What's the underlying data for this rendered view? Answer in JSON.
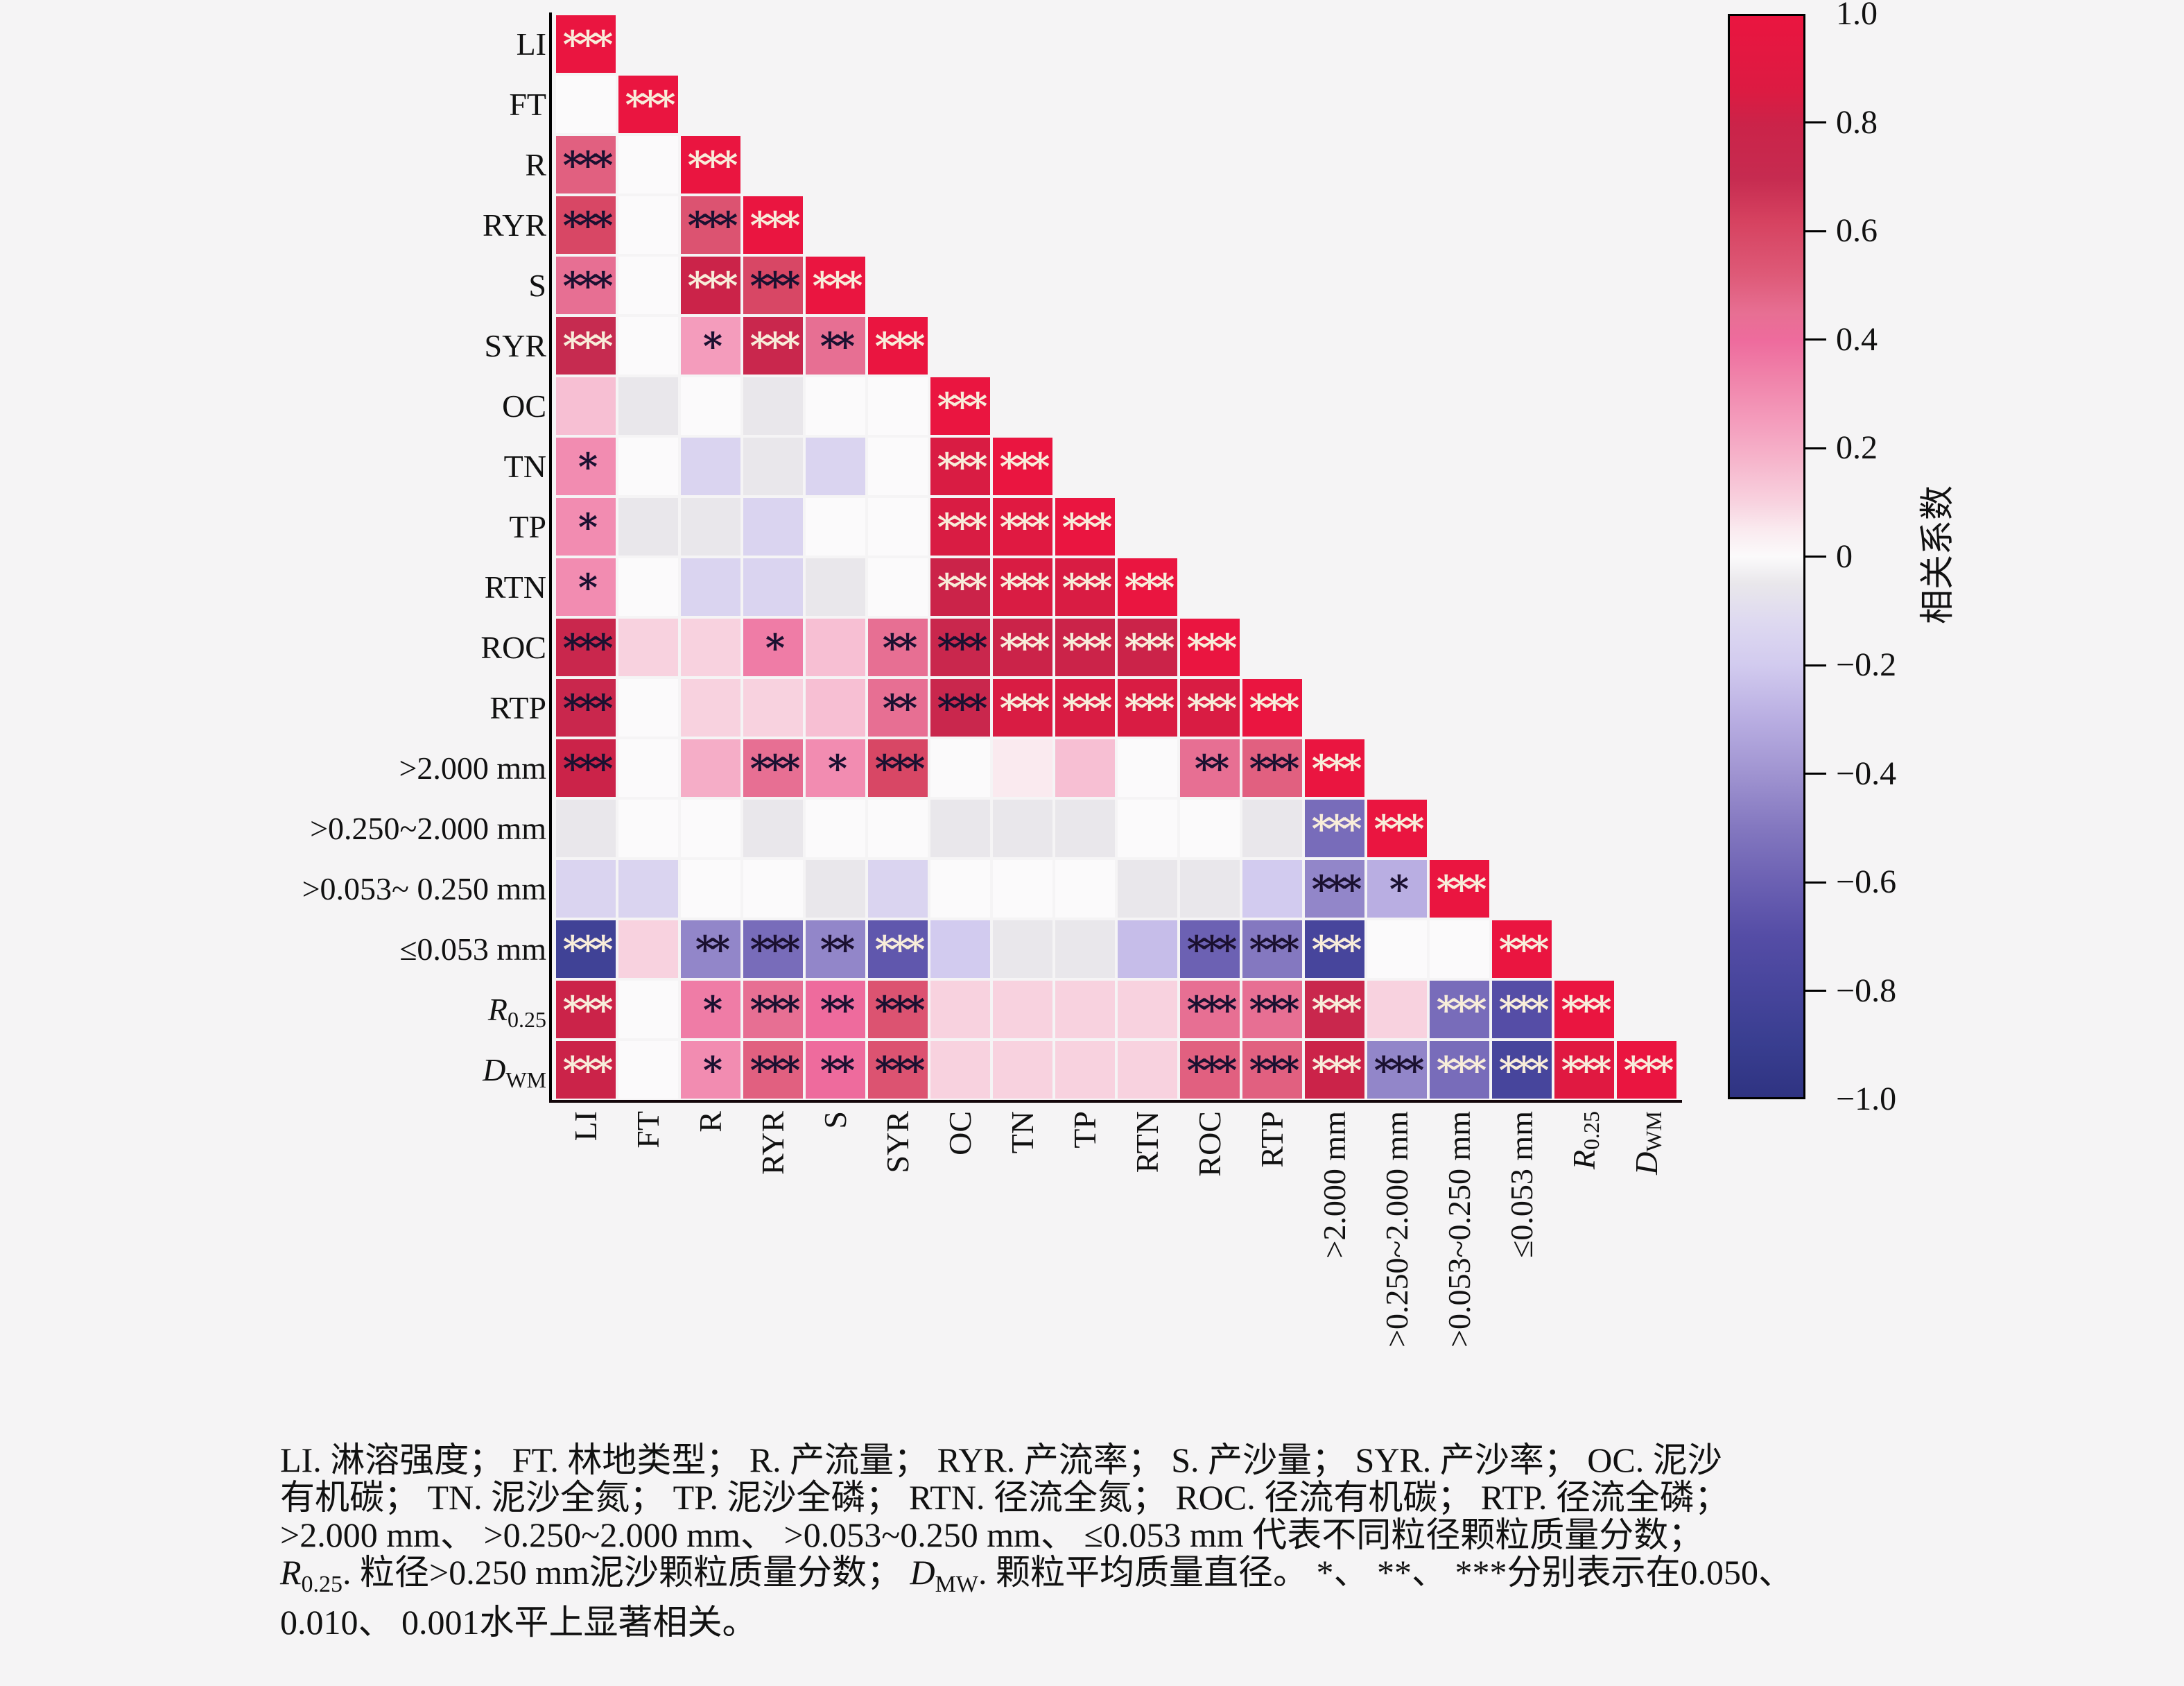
{
  "chart_data": {
    "type": "heatmap",
    "title": "",
    "description": "Lower-triangular correlation matrix with significance stars",
    "value_range": [
      -1,
      1
    ],
    "variables": [
      "LI",
      "FT",
      "R",
      "RYR",
      "S",
      "SYR",
      "OC",
      "TN",
      "TP",
      "RTN",
      "ROC",
      "RTP",
      ">2.000 mm",
      ">0.250~2.000 mm",
      ">0.053~ 0.250 mm",
      "≤0.053 mm",
      "R0.25",
      "DWM"
    ],
    "row_display": [
      {
        "t": "LI"
      },
      {
        "t": "FT"
      },
      {
        "t": "R"
      },
      {
        "t": "RYR"
      },
      {
        "t": "S"
      },
      {
        "t": "SYR"
      },
      {
        "t": "OC"
      },
      {
        "t": "TN"
      },
      {
        "t": "TP"
      },
      {
        "t": "RTN"
      },
      {
        "t": "ROC"
      },
      {
        "t": "RTP"
      },
      {
        "t": ">2.000 mm"
      },
      {
        "t": ">0.250~2.000 mm"
      },
      {
        "t": ">0.053~ 0.250 mm"
      },
      {
        "t": "≤0.053 mm"
      },
      {
        "i": "R",
        "s": "0.25"
      },
      {
        "i": "D",
        "s": "WM"
      }
    ],
    "col_display": [
      {
        "t": "LI"
      },
      {
        "t": "FT"
      },
      {
        "t": "R"
      },
      {
        "t": "RYR"
      },
      {
        "t": "S"
      },
      {
        "t": "SYR"
      },
      {
        "t": "OC"
      },
      {
        "t": "TN"
      },
      {
        "t": "TP"
      },
      {
        "t": "RTN"
      },
      {
        "t": "ROC"
      },
      {
        "t": "RTP"
      },
      {
        "t": ">2.000 mm"
      },
      {
        "t": ">0.250~2.000 mm"
      },
      {
        "t": ">0.053~0.250 mm"
      },
      {
        "t": "≤0.053 mm"
      },
      {
        "i": "R",
        "s": "0.25"
      },
      {
        "i": "D",
        "s": "WM"
      }
    ],
    "rows": [
      {
        "label": "LI",
        "cells": [
          [
            1,
            "***"
          ]
        ]
      },
      {
        "label": "FT",
        "cells": [
          [
            0,
            ""
          ],
          [
            1,
            "***"
          ]
        ]
      },
      {
        "label": "R",
        "cells": [
          [
            0.5,
            "***"
          ],
          [
            0,
            ""
          ],
          [
            1,
            "***"
          ]
        ]
      },
      {
        "label": "RYR",
        "cells": [
          [
            0.6,
            "***"
          ],
          [
            0,
            ""
          ],
          [
            0.55,
            "***"
          ],
          [
            1,
            "***"
          ]
        ]
      },
      {
        "label": "S",
        "cells": [
          [
            0.45,
            "***"
          ],
          [
            0,
            ""
          ],
          [
            0.8,
            "***"
          ],
          [
            0.6,
            "***"
          ],
          [
            1,
            "***"
          ]
        ]
      },
      {
        "label": "SYR",
        "cells": [
          [
            0.7,
            "***"
          ],
          [
            0,
            ""
          ],
          [
            0.25,
            "*"
          ],
          [
            0.75,
            "***"
          ],
          [
            0.45,
            "**"
          ],
          [
            1,
            "***"
          ]
        ]
      },
      {
        "label": "OC",
        "cells": [
          [
            0.15,
            ""
          ],
          [
            -0.05,
            ""
          ],
          [
            0,
            ""
          ],
          [
            -0.05,
            ""
          ],
          [
            0,
            ""
          ],
          [
            0,
            ""
          ],
          [
            1,
            "***"
          ]
        ]
      },
      {
        "label": "TN",
        "cells": [
          [
            0.3,
            "*"
          ],
          [
            0,
            ""
          ],
          [
            -0.15,
            ""
          ],
          [
            -0.05,
            ""
          ],
          [
            -0.15,
            ""
          ],
          [
            0,
            ""
          ],
          [
            0.85,
            "***"
          ],
          [
            1,
            "***"
          ]
        ]
      },
      {
        "label": "TP",
        "cells": [
          [
            0.3,
            "*"
          ],
          [
            -0.05,
            ""
          ],
          [
            -0.05,
            ""
          ],
          [
            -0.15,
            ""
          ],
          [
            0,
            ""
          ],
          [
            0,
            ""
          ],
          [
            0.85,
            "***"
          ],
          [
            0.9,
            "***"
          ],
          [
            1,
            "***"
          ]
        ]
      },
      {
        "label": "RTN",
        "cells": [
          [
            0.3,
            "*"
          ],
          [
            0,
            ""
          ],
          [
            -0.15,
            ""
          ],
          [
            -0.15,
            ""
          ],
          [
            -0.05,
            ""
          ],
          [
            0,
            ""
          ],
          [
            0.8,
            "***"
          ],
          [
            0.85,
            "***"
          ],
          [
            0.85,
            "***"
          ],
          [
            1,
            "***"
          ]
        ]
      },
      {
        "label": "ROC",
        "cells": [
          [
            0.75,
            "***",
            "d"
          ],
          [
            0.1,
            ""
          ],
          [
            0.1,
            ""
          ],
          [
            0.35,
            "*"
          ],
          [
            0.15,
            ""
          ],
          [
            0.45,
            "**"
          ],
          [
            0.75,
            "***",
            "d"
          ],
          [
            0.8,
            "***"
          ],
          [
            0.8,
            "***"
          ],
          [
            0.8,
            "***"
          ],
          [
            1,
            "***"
          ]
        ]
      },
      {
        "label": "RTP",
        "cells": [
          [
            0.75,
            "***",
            "d"
          ],
          [
            0,
            ""
          ],
          [
            0.1,
            ""
          ],
          [
            0.1,
            ""
          ],
          [
            0.15,
            ""
          ],
          [
            0.45,
            "**"
          ],
          [
            0.75,
            "***",
            "d"
          ],
          [
            0.85,
            "***"
          ],
          [
            0.85,
            "***"
          ],
          [
            0.85,
            "***"
          ],
          [
            0.85,
            "***"
          ],
          [
            1,
            "***"
          ]
        ]
      },
      {
        "label": ">2.000 mm",
        "cells": [
          [
            0.8,
            "***",
            "d"
          ],
          [
            0,
            ""
          ],
          [
            0.2,
            ""
          ],
          [
            0.45,
            "***"
          ],
          [
            0.3,
            "*"
          ],
          [
            0.6,
            "***",
            "d"
          ],
          [
            0,
            ""
          ],
          [
            0.05,
            ""
          ],
          [
            0.15,
            ""
          ],
          [
            0,
            ""
          ],
          [
            0.45,
            "**"
          ],
          [
            0.5,
            "***"
          ],
          [
            1,
            "***"
          ]
        ]
      },
      {
        "label": ">0.250~2.000 mm",
        "cells": [
          [
            -0.05,
            ""
          ],
          [
            0,
            ""
          ],
          [
            0,
            ""
          ],
          [
            -0.05,
            ""
          ],
          [
            0,
            ""
          ],
          [
            0,
            ""
          ],
          [
            -0.05,
            ""
          ],
          [
            -0.05,
            ""
          ],
          [
            -0.05,
            ""
          ],
          [
            0,
            ""
          ],
          [
            0,
            ""
          ],
          [
            -0.05,
            ""
          ],
          [
            -0.55,
            "***",
            "w"
          ],
          [
            1,
            "***"
          ]
        ]
      },
      {
        "label": ">0.053~0.250 mm",
        "cells": [
          [
            -0.15,
            ""
          ],
          [
            -0.15,
            ""
          ],
          [
            0,
            ""
          ],
          [
            0,
            ""
          ],
          [
            -0.05,
            ""
          ],
          [
            -0.15,
            ""
          ],
          [
            0,
            ""
          ],
          [
            0,
            ""
          ],
          [
            0,
            ""
          ],
          [
            -0.05,
            ""
          ],
          [
            -0.05,
            ""
          ],
          [
            -0.2,
            ""
          ],
          [
            -0.45,
            "***"
          ],
          [
            -0.3,
            "*"
          ],
          [
            1,
            "***"
          ]
        ]
      },
      {
        "label": "≤0.053 mm",
        "cells": [
          [
            -0.85,
            "***"
          ],
          [
            0.1,
            ""
          ],
          [
            -0.45,
            "**"
          ],
          [
            -0.55,
            "***"
          ],
          [
            -0.45,
            "**"
          ],
          [
            -0.65,
            "***",
            "w"
          ],
          [
            -0.2,
            ""
          ],
          [
            -0.05,
            ""
          ],
          [
            -0.05,
            ""
          ],
          [
            -0.25,
            ""
          ],
          [
            -0.6,
            "***"
          ],
          [
            -0.5,
            "***"
          ],
          [
            -0.8,
            "***"
          ],
          [
            0,
            ""
          ],
          [
            0,
            ""
          ],
          [
            1,
            "***"
          ]
        ]
      },
      {
        "label": "R0.25",
        "cells": [
          [
            0.8,
            "***"
          ],
          [
            0,
            ""
          ],
          [
            0.35,
            "*"
          ],
          [
            0.45,
            "***"
          ],
          [
            0.4,
            "**"
          ],
          [
            0.55,
            "***"
          ],
          [
            0.1,
            ""
          ],
          [
            0.1,
            ""
          ],
          [
            0.1,
            ""
          ],
          [
            0.1,
            ""
          ],
          [
            0.45,
            "***"
          ],
          [
            0.45,
            "***"
          ],
          [
            0.75,
            "***"
          ],
          [
            0.1,
            ""
          ],
          [
            -0.55,
            "***",
            "w"
          ],
          [
            -0.7,
            "***"
          ],
          [
            1,
            "***"
          ]
        ]
      },
      {
        "label": "DWM",
        "cells": [
          [
            0.8,
            "***"
          ],
          [
            0,
            ""
          ],
          [
            0.3,
            "*"
          ],
          [
            0.5,
            "***"
          ],
          [
            0.4,
            "**"
          ],
          [
            0.55,
            "***"
          ],
          [
            0.1,
            ""
          ],
          [
            0.1,
            ""
          ],
          [
            0.1,
            ""
          ],
          [
            0.1,
            ""
          ],
          [
            0.5,
            "***"
          ],
          [
            0.5,
            "***"
          ],
          [
            0.8,
            "***"
          ],
          [
            -0.45,
            "***"
          ],
          [
            -0.55,
            "***",
            "w"
          ],
          [
            -0.8,
            "***"
          ],
          [
            0.9,
            "***"
          ],
          [
            1,
            "***"
          ]
        ]
      }
    ],
    "colormap": [
      [
        1.0,
        "#ea1540"
      ],
      [
        0.86,
        "#dc1b42"
      ],
      [
        0.8,
        "#cb2349"
      ],
      [
        0.7,
        "#c62b50"
      ],
      [
        0.62,
        "#d64260"
      ],
      [
        0.52,
        "#de5a78"
      ],
      [
        0.45,
        "#e76f93"
      ],
      [
        0.4,
        "#ee6b9d"
      ],
      [
        0.33,
        "#f083aa"
      ],
      [
        0.25,
        "#f49cbc"
      ],
      [
        0.18,
        "#f6b4cb"
      ],
      [
        0.1,
        "#f8d2df"
      ],
      [
        0.05,
        "#faeaef"
      ],
      [
        0.0,
        "#fbfafb"
      ],
      [
        -0.05,
        "#e9e7eb"
      ],
      [
        -0.12,
        "#ded9f0"
      ],
      [
        -0.2,
        "#d2cbef"
      ],
      [
        -0.3,
        "#b9aee2"
      ],
      [
        -0.4,
        "#a094d1"
      ],
      [
        -0.5,
        "#8478c0"
      ],
      [
        -0.6,
        "#6c61b3"
      ],
      [
        -0.7,
        "#554da6"
      ],
      [
        -0.8,
        "#47459c"
      ],
      [
        -0.9,
        "#393e90"
      ],
      [
        -1.0,
        "#2f3382"
      ]
    ],
    "colorbar": {
      "title": "相关系数",
      "range": [
        -1,
        1
      ],
      "ticks": [
        {
          "v": 1.0,
          "label": "1.0"
        },
        {
          "v": 0.8,
          "label": "0.8"
        },
        {
          "v": 0.6,
          "label": "0.6"
        },
        {
          "v": 0.4,
          "label": "0.4"
        },
        {
          "v": 0.2,
          "label": "0.2"
        },
        {
          "v": 0.0,
          "label": "0"
        },
        {
          "v": -0.2,
          "label": "−0.2"
        },
        {
          "v": -0.4,
          "label": "−0.4"
        },
        {
          "v": -0.6,
          "label": "−0.6"
        },
        {
          "v": -0.8,
          "label": "−0.8"
        },
        {
          "v": -1.0,
          "label": "−1.0"
        }
      ]
    },
    "star_colors": {
      "dark": "#1a1030",
      "light": "#f8edda"
    },
    "grid": false,
    "legend_position": "right-colorbar"
  },
  "caption": {
    "line1": "LI. 淋溶强度； FT. 林地类型； R. 产流量； RYR. 产流率；  S. 产沙量； SYR. 产沙率； OC. 泥沙",
    "line2": "有机碳； TN. 泥沙全氮；  TP. 泥沙全磷； RTN. 径流全氮；  ROC. 径流有机碳；  RTP. 径流全磷；",
    "line3": ">2.000 mm、 >0.250~2.000 mm、 >0.053~0.250 mm、 ≤0.053 mm 代表不同粒径颗粒质量分数；",
    "line4": {
      "r": "R",
      "rsub": "0.25",
      "mid": ". 粒径>0.250 mm泥沙颗粒质量分数； ",
      "d": "D",
      "dsub": "MW",
      "end": ". 颗粒平均质量直径。 *、 **、 ***分别表示在0.050、"
    },
    "line5": "0.010、 0.001水平上显著相关。"
  }
}
